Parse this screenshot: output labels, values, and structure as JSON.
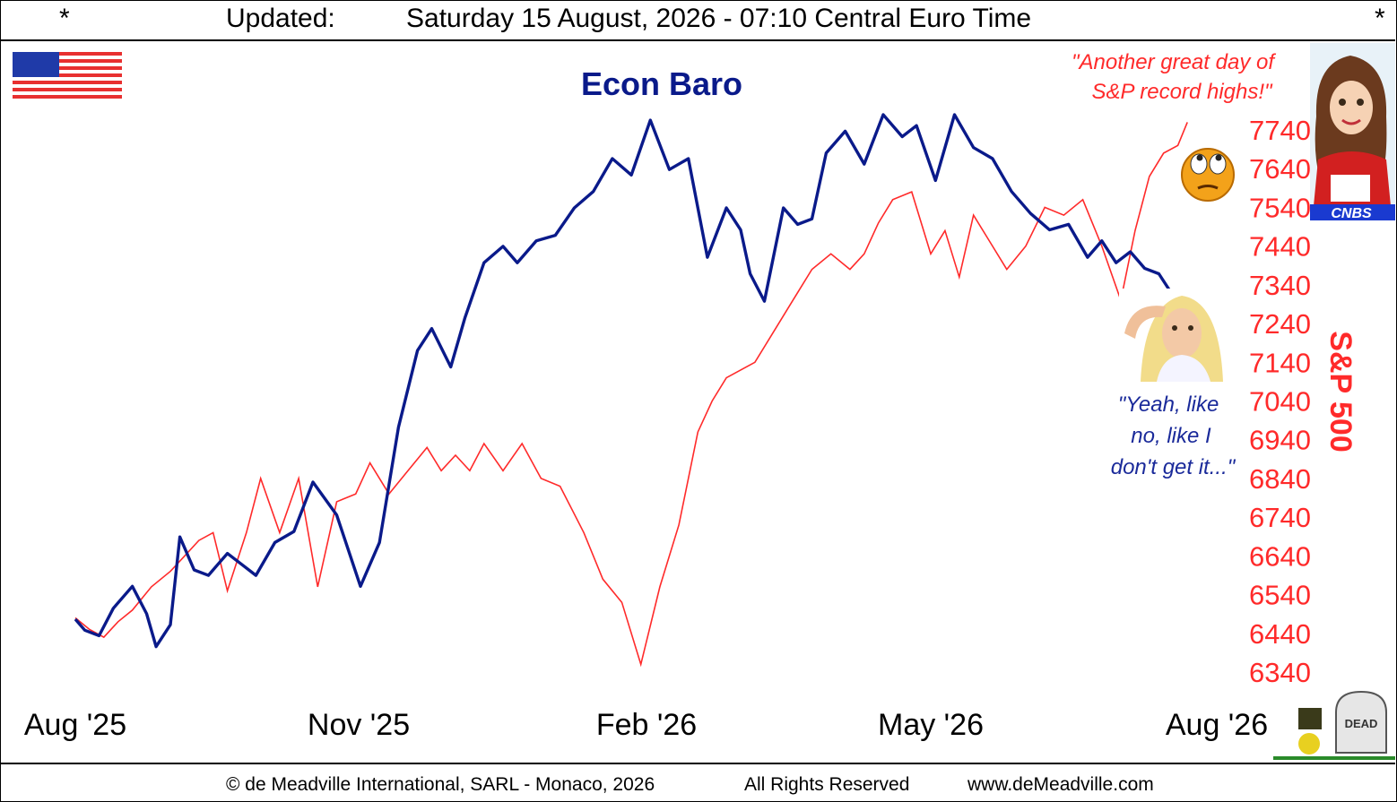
{
  "header": {
    "left_mark": "*",
    "updated_label": "Updated:",
    "updated_value": "Saturday 15 August, 2026 - 07:10 Central Euro Time",
    "right_mark": "*"
  },
  "footer": {
    "copyright": "© de Meadville International, SARL - Monaco, 2026",
    "rights": "All Rights Reserved",
    "website": "www.deMeadville.com"
  },
  "annotations": {
    "top_quote_line1": "\"Another great day of",
    "top_quote_line2": "S&P record highs!\"",
    "bottom_quote_line1": "\"Yeah, like",
    "bottom_quote_line2": "no, like I",
    "bottom_quote_line3": "don't get it...\"",
    "news_badge": "CNBS",
    "tombstone_text": "DEAD",
    "icons": [
      "us-flag-icon",
      "news-anchor-icon",
      "confused-woman-icon",
      "rolling-eyes-emoji-icon",
      "tombstone-icon"
    ]
  },
  "colors": {
    "econ_baro": "#0a1a8a",
    "sp500": "#ff2a2a"
  },
  "chart_data": {
    "type": "line",
    "title": "Econ Baro",
    "ylabel_right": "S&P 500",
    "x_ticks": [
      "Aug '25",
      "Nov '25",
      "Feb '26",
      "May '26",
      "Aug '26"
    ],
    "x_range": [
      0,
      12
    ],
    "y_right_ticks": [
      6340,
      6440,
      6540,
      6640,
      6740,
      6840,
      6940,
      7040,
      7140,
      7240,
      7340,
      7440,
      7540,
      7640,
      7740
    ],
    "y_right_range": [
      6300,
      7780
    ],
    "series": [
      {
        "name": "Econ Baro",
        "axis": "unscaled",
        "y_range": [
          0,
          100
        ],
        "x": [
          0.0,
          0.1,
          0.25,
          0.4,
          0.6,
          0.75,
          0.85,
          1.0,
          1.1,
          1.25,
          1.4,
          1.5,
          1.6,
          1.75,
          1.9,
          2.1,
          2.3,
          2.5,
          2.75,
          3.0,
          3.2,
          3.4,
          3.6,
          3.75,
          3.95,
          4.1,
          4.3,
          4.5,
          4.65,
          4.85,
          5.05,
          5.25,
          5.45,
          5.65,
          5.85,
          6.05,
          6.25,
          6.45,
          6.65,
          6.85,
          7.0,
          7.1,
          7.25,
          7.45,
          7.6,
          7.75,
          7.9,
          8.1,
          8.3,
          8.5,
          8.7,
          8.85,
          9.05,
          9.25,
          9.45,
          9.65,
          9.85,
          10.05,
          10.25,
          10.45,
          10.65,
          10.8,
          10.95,
          11.1,
          11.25,
          11.4,
          11.55,
          11.7
        ],
        "values": [
          8,
          6,
          5,
          10,
          14,
          9,
          3,
          7,
          23,
          17,
          16,
          18,
          20,
          18,
          16,
          22,
          24,
          33,
          27,
          14,
          22,
          43,
          57,
          61,
          54,
          63,
          73,
          76,
          73,
          77,
          78,
          83,
          86,
          92,
          89,
          99,
          90,
          92,
          74,
          83,
          79,
          71,
          66,
          83,
          80,
          81,
          93,
          97,
          91,
          100,
          96,
          98,
          88,
          100,
          94,
          92,
          86,
          82,
          79,
          80,
          74,
          77,
          73,
          75,
          72,
          71,
          67,
          57
        ]
      },
      {
        "name": "S&P 500",
        "axis": "right",
        "x": [
          0.0,
          0.15,
          0.3,
          0.45,
          0.6,
          0.8,
          1.0,
          1.15,
          1.3,
          1.45,
          1.6,
          1.8,
          1.95,
          2.15,
          2.35,
          2.55,
          2.75,
          2.95,
          3.1,
          3.3,
          3.5,
          3.7,
          3.85,
          4.0,
          4.15,
          4.3,
          4.5,
          4.7,
          4.9,
          5.1,
          5.35,
          5.55,
          5.75,
          5.95,
          6.15,
          6.35,
          6.55,
          6.7,
          6.85,
          7.0,
          7.15,
          7.35,
          7.55,
          7.75,
          7.95,
          8.15,
          8.3,
          8.45,
          8.6,
          8.8,
          9.0,
          9.15,
          9.3,
          9.45,
          9.6,
          9.8,
          10.0,
          10.2,
          10.4,
          10.6,
          10.8,
          11.0,
          11.15,
          11.3,
          11.45,
          11.6,
          11.7
        ],
        "values": [
          6480,
          6450,
          6430,
          6470,
          6500,
          6560,
          6600,
          6640,
          6680,
          6700,
          6550,
          6700,
          6840,
          6700,
          6840,
          6560,
          6780,
          6800,
          6880,
          6800,
          6860,
          6920,
          6860,
          6900,
          6860,
          6930,
          6860,
          6930,
          6840,
          6820,
          6700,
          6580,
          6520,
          6360,
          6560,
          6720,
          6960,
          7040,
          7100,
          7120,
          7140,
          7220,
          7300,
          7380,
          7420,
          7380,
          7420,
          7500,
          7560,
          7580,
          7420,
          7480,
          7360,
          7520,
          7460,
          7380,
          7440,
          7540,
          7520,
          7560,
          7440,
          7300,
          7480,
          7620,
          7680,
          7700,
          7760
        ]
      }
    ],
    "legend": "none",
    "grid": false
  }
}
